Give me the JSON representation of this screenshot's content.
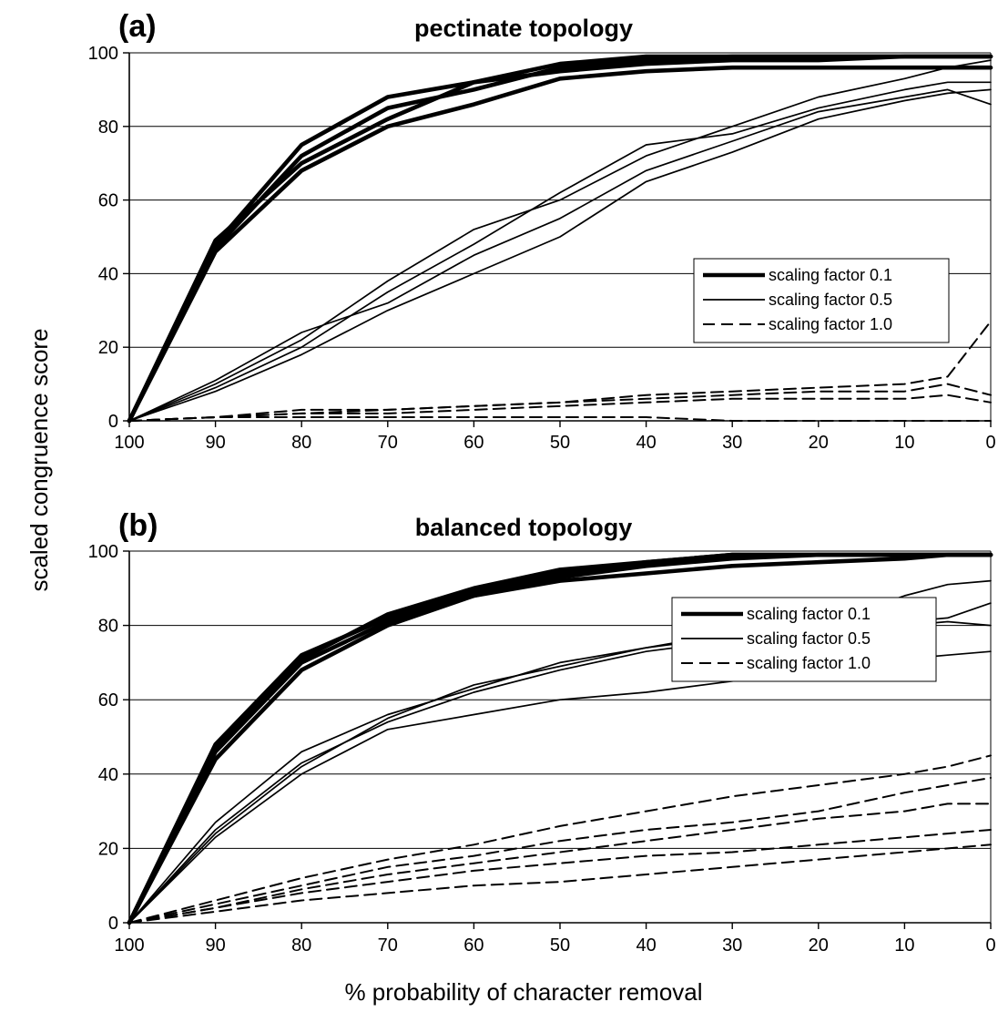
{
  "ylabel": "scaled congruence score",
  "xlabel": "% probability of character removal",
  "chart_data": [
    {
      "type": "line",
      "panel": "(a)",
      "title": "pectinate topology",
      "xlim": [
        100,
        0
      ],
      "ylim": [
        0,
        100
      ],
      "x_ticks": [
        100,
        90,
        80,
        70,
        60,
        50,
        40,
        30,
        20,
        10,
        0
      ],
      "y_ticks": [
        0,
        20,
        40,
        60,
        80,
        100
      ],
      "grid": "horizontal",
      "legend": "center-right",
      "legend_entries": [
        {
          "label": "scaling factor 0.1",
          "style": "thick"
        },
        {
          "label": "scaling factor 0.5",
          "style": "thin"
        },
        {
          "label": "scaling factor 1.0",
          "style": "dashed"
        }
      ],
      "x": [
        100,
        90,
        80,
        70,
        60,
        50,
        40,
        30,
        20,
        10,
        5,
        0
      ],
      "series": [
        {
          "group": "scaling factor 0.1",
          "style": "thick",
          "values": [
            0,
            48,
            75,
            88,
            92,
            97,
            99,
            99,
            99,
            99,
            99,
            99
          ]
        },
        {
          "group": "scaling factor 0.1",
          "style": "thick",
          "values": [
            0,
            47,
            72,
            85,
            90,
            96,
            98,
            99,
            99,
            99,
            99,
            99
          ]
        },
        {
          "group": "scaling factor 0.1",
          "style": "thick",
          "values": [
            0,
            49,
            70,
            82,
            92,
            95,
            97,
            98,
            98,
            99,
            99,
            99
          ]
        },
        {
          "group": "scaling factor 0.1",
          "style": "thick",
          "values": [
            0,
            46,
            68,
            80,
            86,
            93,
            95,
            96,
            96,
            96,
            96,
            96
          ]
        },
        {
          "group": "scaling factor 0.5",
          "style": "thin",
          "values": [
            0,
            10,
            22,
            38,
            52,
            60,
            72,
            80,
            88,
            93,
            96,
            98
          ]
        },
        {
          "group": "scaling factor 0.5",
          "style": "thin",
          "values": [
            0,
            9,
            20,
            35,
            48,
            62,
            75,
            78,
            85,
            90,
            92,
            92
          ]
        },
        {
          "group": "scaling factor 0.5",
          "style": "thin",
          "values": [
            0,
            11,
            24,
            32,
            45,
            55,
            68,
            76,
            84,
            88,
            90,
            86
          ]
        },
        {
          "group": "scaling factor 0.5",
          "style": "thin",
          "values": [
            0,
            8,
            18,
            30,
            40,
            50,
            65,
            73,
            82,
            87,
            89,
            90
          ]
        },
        {
          "group": "scaling factor 1.0",
          "style": "dashed",
          "values": [
            0,
            1,
            3,
            3,
            4,
            5,
            7,
            8,
            9,
            10,
            12,
            27
          ]
        },
        {
          "group": "scaling factor 1.0",
          "style": "dashed",
          "values": [
            0,
            1,
            2,
            3,
            4,
            5,
            6,
            7,
            8,
            8,
            10,
            7
          ]
        },
        {
          "group": "scaling factor 1.0",
          "style": "dashed",
          "values": [
            0,
            1,
            2,
            2,
            3,
            4,
            5,
            6,
            6,
            6,
            7,
            5
          ]
        },
        {
          "group": "scaling factor 1.0",
          "style": "dashed",
          "values": [
            0,
            1,
            1,
            1,
            1,
            1,
            1,
            0,
            0,
            0,
            0,
            0
          ]
        }
      ]
    },
    {
      "type": "line",
      "panel": "(b)",
      "title": "balanced topology",
      "xlim": [
        100,
        0
      ],
      "ylim": [
        0,
        100
      ],
      "x_ticks": [
        100,
        90,
        80,
        70,
        60,
        50,
        40,
        30,
        20,
        10,
        0
      ],
      "y_ticks": [
        0,
        20,
        40,
        60,
        80,
        100
      ],
      "grid": "horizontal",
      "legend": "center-right",
      "legend_entries": [
        {
          "label": "scaling factor 0.1",
          "style": "thick"
        },
        {
          "label": "scaling factor 0.5",
          "style": "thin"
        },
        {
          "label": "scaling factor 1.0",
          "style": "dashed"
        }
      ],
      "x": [
        100,
        90,
        80,
        70,
        60,
        50,
        40,
        30,
        20,
        10,
        5,
        0
      ],
      "series": [
        {
          "group": "scaling factor 0.1",
          "style": "thick",
          "values": [
            0,
            48,
            72,
            82,
            89,
            94,
            97,
            99,
            99,
            99,
            99,
            99
          ]
        },
        {
          "group": "scaling factor 0.1",
          "style": "thick",
          "values": [
            0,
            46,
            70,
            81,
            88,
            93,
            96,
            98,
            99,
            99,
            99,
            99
          ]
        },
        {
          "group": "scaling factor 0.1",
          "style": "thick",
          "values": [
            0,
            44,
            68,
            80,
            88,
            92,
            94,
            96,
            97,
            98,
            99,
            99
          ]
        },
        {
          "group": "scaling factor 0.1",
          "style": "thick",
          "values": [
            0,
            47,
            71,
            83,
            90,
            95,
            97,
            99,
            99,
            99,
            99,
            99
          ]
        },
        {
          "group": "scaling factor 0.5",
          "style": "thin",
          "values": [
            0,
            27,
            46,
            56,
            63,
            70,
            74,
            77,
            80,
            88,
            91,
            92
          ]
        },
        {
          "group": "scaling factor 0.5",
          "style": "thin",
          "values": [
            0,
            25,
            43,
            54,
            62,
            68,
            73,
            76,
            79,
            81,
            82,
            86
          ]
        },
        {
          "group": "scaling factor 0.5",
          "style": "thin",
          "values": [
            0,
            24,
            42,
            55,
            64,
            69,
            74,
            78,
            80,
            80,
            81,
            80
          ]
        },
        {
          "group": "scaling factor 0.5",
          "style": "thin",
          "values": [
            0,
            23,
            40,
            52,
            56,
            60,
            62,
            65,
            68,
            71,
            72,
            73
          ]
        },
        {
          "group": "scaling factor 1.0",
          "style": "dashed",
          "values": [
            0,
            6,
            12,
            17,
            21,
            26,
            30,
            34,
            37,
            40,
            42,
            45
          ]
        },
        {
          "group": "scaling factor 1.0",
          "style": "dashed",
          "values": [
            0,
            5,
            10,
            15,
            18,
            22,
            25,
            27,
            30,
            35,
            37,
            39
          ]
        },
        {
          "group": "scaling factor 1.0",
          "style": "dashed",
          "values": [
            0,
            4,
            9,
            13,
            16,
            19,
            22,
            25,
            28,
            30,
            32,
            32
          ]
        },
        {
          "group": "scaling factor 1.0",
          "style": "dashed",
          "values": [
            0,
            4,
            8,
            11,
            14,
            16,
            18,
            19,
            21,
            23,
            24,
            25
          ]
        },
        {
          "group": "scaling factor 1.0",
          "style": "dashed",
          "values": [
            0,
            3,
            6,
            8,
            10,
            11,
            13,
            15,
            17,
            19,
            20,
            21
          ]
        }
      ]
    }
  ]
}
